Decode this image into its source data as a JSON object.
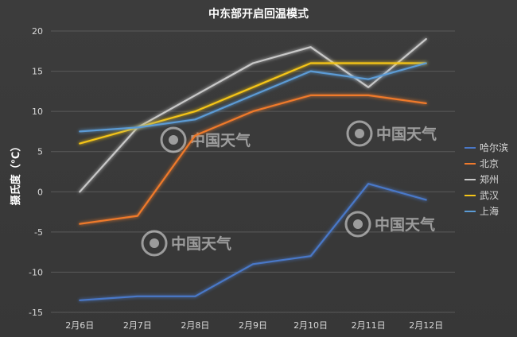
{
  "chart_data": {
    "type": "line",
    "title": "中东部开启回温模式",
    "ylabel": "摄氏度（℃）",
    "xlabel": "",
    "categories": [
      "2月6日",
      "2月7日",
      "2月8日",
      "2月9日",
      "2月10日",
      "2月11日",
      "2月12日"
    ],
    "ylim": [
      -15,
      20
    ],
    "yticks": [
      20,
      15,
      10,
      5,
      0,
      -5,
      -10,
      -15
    ],
    "grid": true,
    "legend_position": "right",
    "series": [
      {
        "name": "哈尔滨",
        "color": "#4a78c8",
        "values": [
          -13.5,
          -13,
          -13,
          -9,
          -8,
          1,
          -1
        ]
      },
      {
        "name": "北京",
        "color": "#f07a2c",
        "values": [
          -4,
          -3,
          7,
          10,
          12,
          12,
          11
        ]
      },
      {
        "name": "郑州",
        "color": "#c8c8c8",
        "values": [
          0,
          8,
          12,
          16,
          18,
          13,
          19
        ]
      },
      {
        "name": "武汉",
        "color": "#f5c518",
        "values": [
          6,
          8,
          10,
          13,
          16,
          16,
          16
        ]
      },
      {
        "name": "上海",
        "color": "#5b9bd5",
        "values": [
          7.5,
          8,
          9,
          12,
          15,
          14,
          16
        ]
      }
    ],
    "watermark": "中国天气"
  }
}
